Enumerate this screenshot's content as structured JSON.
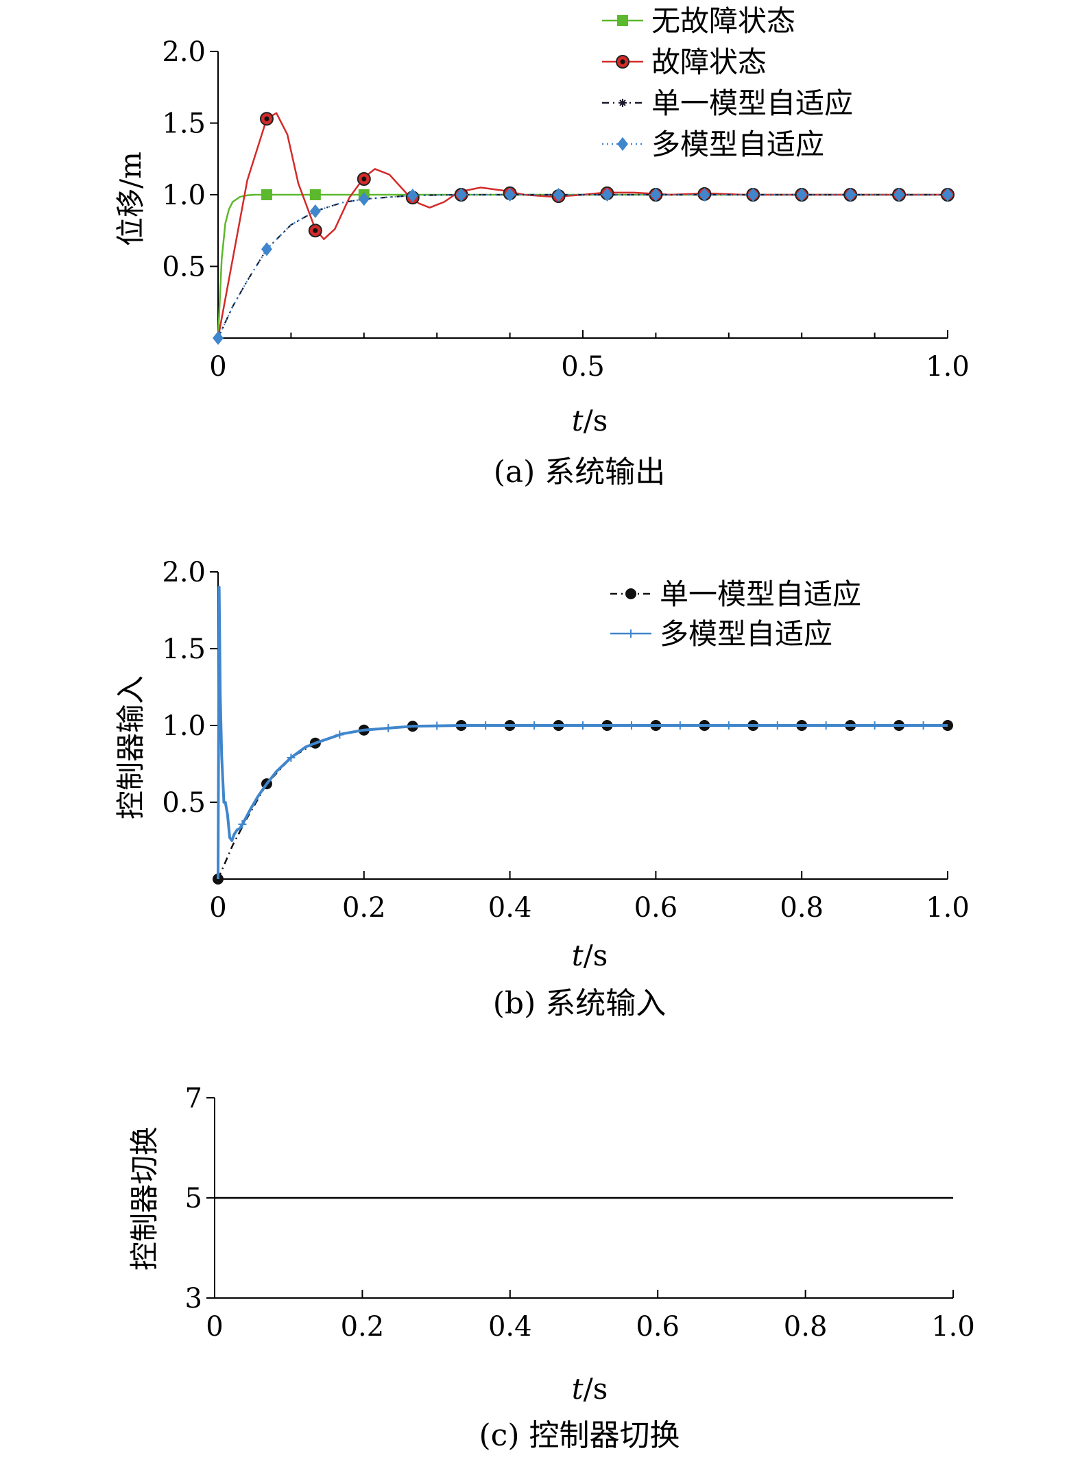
{
  "chart_data": [
    {
      "type": "line",
      "caption": "(a) 系统输出",
      "xlabel_italic": "t",
      "xlabel_unit": "/s",
      "ylabel": "位移/m",
      "xlim": [
        0,
        1.0
      ],
      "ylim": [
        0,
        2.0
      ],
      "xticks": [
        "0",
        "0.5",
        "1.0"
      ],
      "xtick_values": [
        0,
        0.5,
        1.0
      ],
      "yticks": [
        "0.5",
        "1.0",
        "1.5",
        "2.0"
      ],
      "ytick_values": [
        0.5,
        1.0,
        1.5,
        2.0
      ],
      "legend_position": "top-right",
      "series": [
        {
          "name": "无故障状态",
          "color": "#5cb82c",
          "marker": "square",
          "dash": "solid",
          "x": [
            0,
            0.005,
            0.01,
            0.015,
            0.02,
            0.03,
            0.04,
            0.05,
            0.0667,
            0.1333,
            0.2,
            0.2667,
            0.3333,
            0.4,
            0.4667,
            0.5333,
            0.6,
            0.6667,
            0.7333,
            0.8,
            0.8667,
            0.9333,
            1.0
          ],
          "y": [
            0,
            0.55,
            0.8,
            0.9,
            0.95,
            0.985,
            0.996,
            1.0,
            1.0,
            1.0,
            1.0,
            1.0,
            1.0,
            1.0,
            1.0,
            1.0,
            1.0,
            1.0,
            1.0,
            1.0,
            1.0,
            1.0,
            1.0
          ],
          "marker_x": [
            0.0667,
            0.1333,
            0.2
          ]
        },
        {
          "name": "故障状态",
          "color": "#d42a2a",
          "marker": "circle-dot",
          "dash": "solid",
          "x": [
            0,
            0.02,
            0.04,
            0.0667,
            0.08,
            0.095,
            0.11,
            0.1333,
            0.145,
            0.16,
            0.18,
            0.2,
            0.215,
            0.235,
            0.26,
            0.275,
            0.29,
            0.31,
            0.33,
            0.36,
            0.39,
            0.42,
            0.46,
            0.5,
            0.53,
            0.57,
            0.62,
            0.67,
            0.72,
            0.8,
            0.9,
            1.0
          ],
          "y": [
            0,
            0.55,
            1.1,
            1.53,
            1.57,
            1.42,
            1.08,
            0.76,
            0.69,
            0.76,
            0.98,
            1.12,
            1.18,
            1.14,
            1.0,
            0.94,
            0.91,
            0.95,
            1.02,
            1.05,
            1.03,
            1.0,
            0.985,
            1.0,
            1.015,
            1.015,
            1.0,
            1.01,
            1.0,
            1.0,
            1.0,
            1.0
          ],
          "marker_x": [
            0.0667,
            0.1333,
            0.2,
            0.2667,
            0.3333,
            0.4,
            0.4667,
            0.5333,
            0.6,
            0.6667,
            0.7333,
            0.8,
            0.8667,
            0.9333,
            1.0
          ],
          "marker_y": [
            1.53,
            0.75,
            1.11,
            0.98,
            1.0,
            1.01,
            0.99,
            1.01,
            1.0,
            1.005,
            1.0,
            1.0,
            1.0,
            1.0,
            1.0
          ]
        },
        {
          "name": "单一模型自适应",
          "color": "#1a1a2e",
          "marker": "asterisk",
          "dash": "dashdot",
          "x": [
            0,
            0.02,
            0.04,
            0.0667,
            0.1,
            0.1333,
            0.17,
            0.2,
            0.2667,
            0.3333,
            0.4,
            0.5,
            0.6,
            0.7,
            0.8,
            0.9,
            1.0
          ],
          "y": [
            0,
            0.22,
            0.4,
            0.62,
            0.79,
            0.885,
            0.945,
            0.97,
            0.995,
            1.0,
            1.0,
            1.0,
            1.0,
            1.0,
            1.0,
            1.0,
            1.0
          ]
        },
        {
          "name": "多模型自适应",
          "color": "#3f86cc",
          "marker": "diamond",
          "dash": "dotted",
          "x": [
            0,
            0.02,
            0.04,
            0.0667,
            0.1,
            0.1333,
            0.17,
            0.2,
            0.2667,
            0.3333,
            0.4,
            0.5,
            0.6,
            0.7,
            0.8,
            0.9,
            1.0
          ],
          "y": [
            0,
            0.22,
            0.4,
            0.62,
            0.79,
            0.885,
            0.945,
            0.97,
            0.995,
            1.0,
            1.0,
            1.0,
            1.0,
            1.0,
            1.0,
            1.0,
            1.0
          ],
          "marker_x": [
            0,
            0.0667,
            0.1333,
            0.2,
            0.2667,
            0.3333,
            0.4,
            0.4667,
            0.5333,
            0.6,
            0.6667,
            0.7333,
            0.8,
            0.8667,
            0.9333,
            1.0
          ]
        }
      ]
    },
    {
      "type": "line",
      "caption": "(b) 系统输入",
      "xlabel_italic": "t",
      "xlabel_unit": "/s",
      "ylabel": "控制器输入",
      "xlim": [
        0,
        1.0
      ],
      "ylim": [
        0,
        2.0
      ],
      "xticks": [
        "0",
        "0.2",
        "0.4",
        "0.6",
        "0.8",
        "1.0"
      ],
      "xtick_values": [
        0,
        0.2,
        0.4,
        0.6,
        0.8,
        1.0
      ],
      "yticks": [
        "0.5",
        "1.0",
        "1.5",
        "2.0"
      ],
      "ytick_values": [
        0.5,
        1.0,
        1.5,
        2.0
      ],
      "legend_position": "top-right",
      "series": [
        {
          "name": "单一模型自适应",
          "color": "#111111",
          "marker": "circle",
          "dash": "dashdot",
          "x": [
            0,
            0.02,
            0.04,
            0.0667,
            0.1,
            0.1333,
            0.17,
            0.2,
            0.2667,
            0.3333,
            0.4,
            0.5,
            0.6,
            0.7,
            0.8,
            0.9,
            1.0
          ],
          "y": [
            0,
            0.22,
            0.4,
            0.62,
            0.79,
            0.885,
            0.945,
            0.97,
            0.995,
            1.0,
            1.0,
            1.0,
            1.0,
            1.0,
            1.0,
            1.0,
            1.0
          ],
          "marker_x": [
            0,
            0.0667,
            0.1333,
            0.2,
            0.2667,
            0.3333,
            0.4,
            0.4667,
            0.5333,
            0.6,
            0.6667,
            0.7333,
            0.8,
            0.8667,
            0.9333,
            1.0
          ]
        },
        {
          "name": "多模型自适应",
          "color": "#3f86cc",
          "marker": "plus",
          "dash": "solid",
          "x": [
            0,
            0.0015,
            0.003,
            0.005,
            0.008,
            0.01,
            0.013,
            0.016,
            0.019,
            0.022,
            0.026,
            0.03,
            0.035,
            0.045,
            0.055,
            0.0667,
            0.08,
            0.1,
            0.12,
            0.1333,
            0.17,
            0.2,
            0.2667,
            0.3333,
            0.4,
            0.5,
            0.6,
            0.7,
            0.8,
            0.9,
            1.0
          ],
          "y": [
            0,
            1.9,
            1.2,
            0.8,
            0.5,
            0.5,
            0.42,
            0.27,
            0.25,
            0.29,
            0.32,
            0.33,
            0.37,
            0.46,
            0.54,
            0.62,
            0.7,
            0.79,
            0.86,
            0.885,
            0.945,
            0.97,
            0.995,
            1.0,
            1.0,
            1.0,
            1.0,
            1.0,
            1.0,
            1.0,
            1.0
          ]
        }
      ]
    },
    {
      "type": "line",
      "caption": "(c) 控制器切换",
      "xlabel_italic": "t",
      "xlabel_unit": "/s",
      "ylabel": "控制器切换",
      "xlim": [
        0,
        1.0
      ],
      "ylim": [
        3,
        7
      ],
      "xticks": [
        "0",
        "0.2",
        "0.4",
        "0.6",
        "0.8",
        "1.0"
      ],
      "xtick_values": [
        0,
        0.2,
        0.4,
        0.6,
        0.8,
        1.0
      ],
      "yticks": [
        "3",
        "5",
        "7"
      ],
      "ytick_values": [
        3,
        5,
        7
      ],
      "series": [
        {
          "color": "#000000",
          "dash": "solid",
          "x": [
            0,
            1.0
          ],
          "y": [
            5,
            5
          ]
        }
      ]
    }
  ]
}
